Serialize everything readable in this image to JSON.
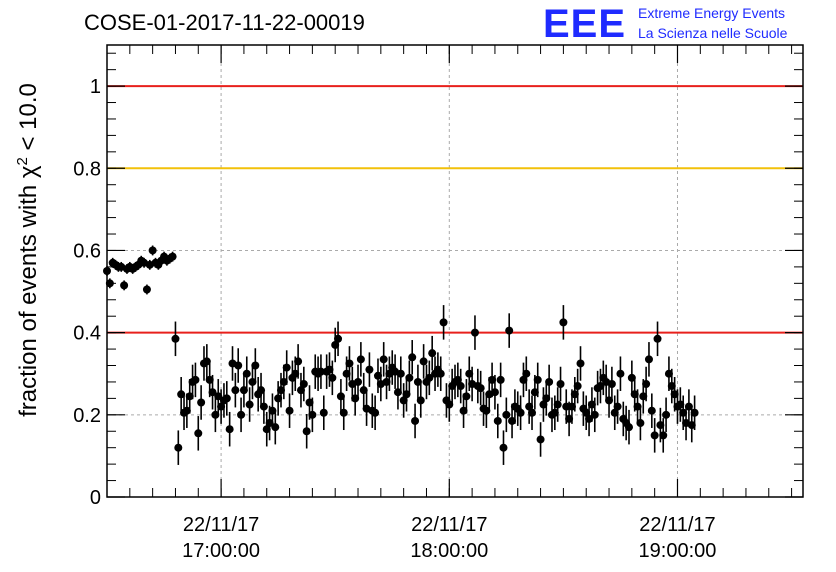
{
  "header": {
    "title": "COSE-01-2017-11-22-00019",
    "logo_mark": "EEE",
    "logo_line1": "Extreme Energy Events",
    "logo_line2": "La Scienza nelle Scuole"
  },
  "colors": {
    "threshold_red": "#e8201c",
    "threshold_yellow": "#f2c10a",
    "marker": "#000000",
    "grid": "#aaaaaa",
    "logo": "#1f2bff"
  },
  "chart_data": {
    "type": "scatter",
    "title": "COSE-01-2017-11-22-00019",
    "ylabel_parts": [
      "fraction of events with ",
      "χ",
      "2",
      " < 10.0"
    ],
    "ylabel": "fraction of events with χ2 < 10.0",
    "xlabel": "",
    "ylim": [
      0,
      1.1
    ],
    "xlim": [
      "22/11/17 16:30:00",
      "22/11/17 19:33:00"
    ],
    "grid": true,
    "y_ticks": [
      0,
      0.2,
      0.4,
      0.6,
      0.8,
      1
    ],
    "y_tick_labels": [
      "0",
      "0.2",
      "0.4",
      "0.6",
      "0.8",
      "1"
    ],
    "x_ticks": [
      {
        "date": "22/11/17",
        "time": "17:00:00"
      },
      {
        "date": "22/11/17",
        "time": "18:00:00"
      },
      {
        "date": "22/11/17",
        "time": "19:00:00"
      }
    ],
    "reference_lines": [
      {
        "y": 1.0,
        "color": "#e8201c"
      },
      {
        "y": 0.8,
        "color": "#f2c10a"
      },
      {
        "y": 0.4,
        "color": "#e8201c"
      }
    ],
    "series": [
      {
        "x_start": "22/11/17 16:30:00",
        "x_step_seconds": 45,
        "y": [
          0.55,
          0.52,
          0.57,
          0.565,
          0.56,
          0.56,
          0.515,
          0.555,
          0.56,
          0.555,
          0.56,
          0.565,
          0.575,
          0.57,
          0.505,
          0.565,
          0.6,
          0.57,
          0.565,
          0.575,
          0.585,
          0.575,
          0.58,
          0.585,
          0.385,
          0.12,
          0.25,
          0.205,
          0.21,
          0.245,
          0.28,
          0.285,
          0.155,
          0.23,
          0.325,
          0.33,
          0.285,
          0.255,
          0.2,
          0.245,
          0.22,
          0.235,
          0.24,
          0.165,
          0.325,
          0.26,
          0.32,
          0.2,
          0.26,
          0.3,
          0.225,
          0.28,
          0.32,
          0.25,
          0.26,
          0.22,
          0.165,
          0.18,
          0.21,
          0.17,
          0.24,
          0.26,
          0.28,
          0.315,
          0.21,
          0.29,
          0.3,
          0.33,
          0.26,
          0.275,
          0.16,
          0.23,
          0.2,
          0.305,
          0.3,
          0.305,
          0.205,
          0.305,
          0.31,
          0.29,
          0.37,
          0.385,
          0.245,
          0.205,
          0.3,
          0.325,
          0.275,
          0.24,
          0.28,
          0.335,
          0.26,
          0.215,
          0.31,
          0.21,
          0.205,
          0.295,
          0.275,
          0.335,
          0.28,
          0.3,
          0.315,
          0.305,
          0.255,
          0.3,
          0.235,
          0.25,
          0.29,
          0.34,
          0.185,
          0.28,
          0.235,
          0.33,
          0.28,
          0.29,
          0.35,
          0.3,
          0.31,
          0.3,
          0.425,
          0.235,
          0.225,
          0.27,
          0.28,
          0.285,
          0.27,
          0.21,
          0.245,
          0.3,
          0.275,
          0.4,
          0.27,
          0.265,
          0.215,
          0.21,
          0.25,
          0.285,
          0.255,
          0.185,
          0.285,
          0.12,
          0.2,
          0.405,
          0.185,
          0.22,
          0.215,
          0.205,
          0.285,
          0.3,
          0.22,
          0.205,
          0.255,
          0.285,
          0.14,
          0.225,
          0.24,
          0.28,
          0.2,
          0.205,
          0.225,
          0.275,
          0.425,
          0.22,
          0.19,
          0.22,
          0.25,
          0.27,
          0.325,
          0.215,
          0.205,
          0.19,
          0.225,
          0.2,
          0.265,
          0.27,
          0.29,
          0.28,
          0.235,
          0.275,
          0.205,
          0.22,
          0.3,
          0.19,
          0.18,
          0.17,
          0.29,
          0.25,
          0.22,
          0.18,
          0.245,
          0.275,
          0.335,
          0.21,
          0.15,
          0.385,
          0.175,
          0.15,
          0.2,
          0.3,
          0.27,
          0.25,
          0.22,
          0.225,
          0.205,
          0.18,
          0.22,
          0.175,
          0.205
        ]
      }
    ]
  }
}
